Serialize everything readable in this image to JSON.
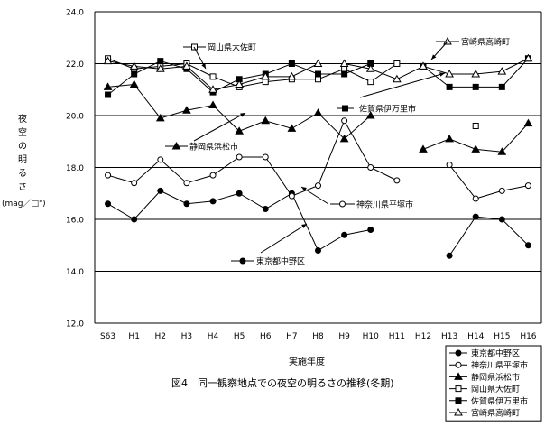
{
  "chart_data": {
    "type": "line",
    "title": "",
    "caption": "図4　同一観察地点での夜空の明るさの推移(冬期)",
    "xlabel": "実施年度",
    "ylabel": "夜空の明るさ",
    "ylabel_unit": "(mag／□\")",
    "ylim": [
      12.0,
      24.0
    ],
    "yticks": [
      "12.0",
      "14.0",
      "16.0",
      "18.0",
      "20.0",
      "22.0",
      "24.0"
    ],
    "grid": "horizontal",
    "legend_position": "bottom-right",
    "categories": [
      "S63",
      "H1",
      "H2",
      "H3",
      "H4",
      "H5",
      "H6",
      "H7",
      "H8",
      "H9",
      "H10",
      "H11",
      "H12",
      "H13",
      "H14",
      "H15",
      "H16"
    ],
    "series": [
      {
        "name": "東京都中野区",
        "marker": "circle-filled",
        "values": [
          16.6,
          16.0,
          17.1,
          16.6,
          16.7,
          17.0,
          16.4,
          17.0,
          14.8,
          15.4,
          15.6,
          null,
          null,
          14.6,
          16.1,
          16.0,
          15.0
        ]
      },
      {
        "name": "神奈川県平塚市",
        "marker": "circle-open",
        "values": [
          17.7,
          17.4,
          18.3,
          17.4,
          17.7,
          18.4,
          18.4,
          16.9,
          17.3,
          19.8,
          18.0,
          17.5,
          null,
          18.1,
          16.8,
          17.1,
          17.3
        ]
      },
      {
        "name": "静岡県浜松市",
        "marker": "triangle-filled",
        "values": [
          21.1,
          21.2,
          19.9,
          20.2,
          20.4,
          19.4,
          19.8,
          19.5,
          20.1,
          19.1,
          20.0,
          null,
          18.7,
          19.1,
          18.7,
          18.6,
          19.7
        ]
      },
      {
        "name": "岡山県大佐町",
        "marker": "square-open",
        "values": [
          22.2,
          21.8,
          21.9,
          22.0,
          21.5,
          21.1,
          21.3,
          21.4,
          21.4,
          21.8,
          21.3,
          22.0,
          null,
          null,
          19.6,
          null,
          null
        ]
      },
      {
        "name": "佐賀県伊万里市",
        "marker": "square-filled",
        "values": [
          20.8,
          21.6,
          22.1,
          21.8,
          20.9,
          21.4,
          21.6,
          22.0,
          21.6,
          21.6,
          22.0,
          null,
          21.9,
          21.1,
          21.1,
          21.1,
          22.2
        ]
      },
      {
        "name": "宮崎県高崎町",
        "marker": "triangle-open",
        "values": [
          22.1,
          21.9,
          21.8,
          21.9,
          21.0,
          21.2,
          21.5,
          21.5,
          22.0,
          22.0,
          21.8,
          21.4,
          21.9,
          21.6,
          21.6,
          21.7,
          22.2
        ]
      }
    ],
    "annotations": [
      {
        "text": "岡山県大佐町",
        "series": "岡山県大佐町"
      },
      {
        "text": "宮崎県高崎町",
        "series": "宮崎県高崎町"
      },
      {
        "text": "佐賀県伊万里市",
        "series": "佐賀県伊万里市"
      },
      {
        "text": "静岡県浜松市",
        "series": "静岡県浜松市"
      },
      {
        "text": "神奈川県平塚市",
        "series": "神奈川県平塚市"
      },
      {
        "text": "東京都中野区",
        "series": "東京都中野区"
      }
    ]
  }
}
